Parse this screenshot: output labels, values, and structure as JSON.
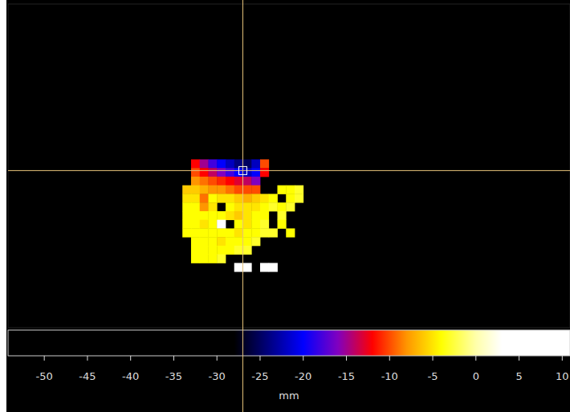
{
  "chart_data": {
    "type": "heatmap",
    "xlabel": "mm",
    "xlim": [
      -54.2,
      10.9
    ],
    "xticks": [
      -50,
      -45,
      -40,
      -35,
      -30,
      -25,
      -20,
      -15,
      -10,
      -5,
      0,
      5,
      10
    ],
    "ylim": [
      0,
      37.5
    ],
    "tick_labels": "x",
    "x": [
      -34.5,
      -33.5,
      -32.5,
      -31.5,
      -30.5,
      -29.5,
      -28.5,
      -27.5,
      -26.5,
      -25.5,
      -24.5,
      -23.5,
      -22.5,
      -21.5,
      -20.5
    ],
    "y": [
      19,
      18,
      17,
      16,
      15,
      14,
      13,
      12,
      11,
      10,
      9,
      8,
      7
    ],
    "cells": [
      [
        null,
        null,
        -12,
        -15,
        -18,
        -20,
        -22,
        -24,
        -25,
        -22,
        -10,
        null,
        null,
        null,
        null
      ],
      [
        null,
        null,
        -10,
        -12,
        -14,
        -16,
        -18,
        -20,
        -22,
        -20,
        -12,
        null,
        null,
        null,
        null
      ],
      [
        null,
        null,
        -8,
        -9,
        -10,
        -11,
        -12,
        -13,
        -14,
        -16,
        null,
        null,
        null,
        null,
        null
      ],
      [
        null,
        -6,
        -6,
        -7,
        -8,
        -8,
        -9,
        -10,
        -10,
        -10,
        null,
        null,
        -4,
        -4,
        -3
      ],
      [
        null,
        -5,
        -5,
        -9,
        -4,
        -5,
        -5,
        -6,
        -7,
        -6,
        -5,
        -4,
        null,
        -4,
        -3
      ],
      [
        null,
        -4,
        -4,
        -8,
        -5,
        null,
        -4,
        -5,
        -5,
        -5,
        -4,
        -3,
        -4,
        -3,
        null
      ],
      [
        null,
        -4,
        -4,
        -4,
        -4,
        -4,
        -5,
        -6,
        -5,
        -4,
        -4,
        null,
        -3,
        null,
        null
      ],
      [
        null,
        -4,
        -4,
        -5,
        -4,
        3,
        null,
        -4,
        -5,
        -4,
        -3,
        null,
        -4,
        null,
        null
      ],
      [
        null,
        -4,
        -4,
        -4,
        -4,
        -4,
        -4,
        -5,
        -4,
        -4,
        -3,
        -3,
        null,
        -4,
        null
      ],
      [
        null,
        null,
        -4,
        -4,
        -4,
        -5,
        -4,
        -4,
        -4,
        -3,
        null,
        null,
        null,
        null,
        null
      ],
      [
        null,
        null,
        -4,
        -4,
        -4,
        -4,
        -4,
        -3,
        -3,
        null,
        null,
        null,
        null,
        null,
        null
      ],
      [
        null,
        null,
        -4,
        -4,
        -4,
        -3,
        null,
        null,
        null,
        null,
        null,
        null,
        null,
        null,
        null
      ],
      [
        null,
        null,
        null,
        null,
        null,
        null,
        null,
        3,
        3,
        null,
        3,
        3,
        null,
        null,
        null
      ]
    ],
    "color_range": [
      -28,
      3
    ],
    "cursor": {
      "x": -27,
      "y": 18.2
    }
  }
}
